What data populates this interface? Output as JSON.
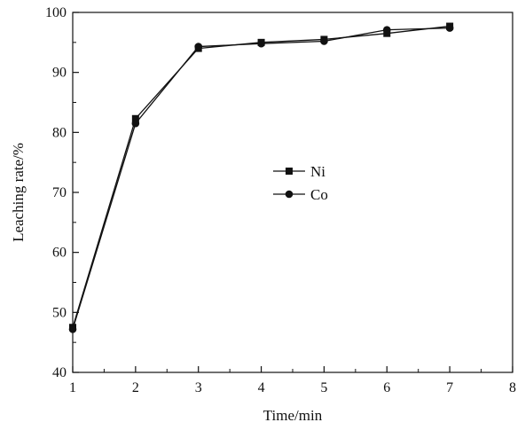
{
  "chart_data": {
    "type": "line",
    "xlabel": "Time/min",
    "ylabel": "Leaching rate/%",
    "xlim": [
      1,
      8
    ],
    "ylim": [
      40,
      100
    ],
    "xticks": [
      1,
      2,
      3,
      4,
      5,
      6,
      7,
      8
    ],
    "yticks": [
      40,
      50,
      60,
      70,
      80,
      90,
      100
    ],
    "xtick_labels": [
      "1",
      "2",
      "3",
      "4",
      "5",
      "6",
      "7",
      "8"
    ],
    "ytick_labels": [
      "40",
      "50",
      "60",
      "70",
      "80",
      "90",
      "100"
    ],
    "grid": false,
    "legend_position": "center",
    "series": [
      {
        "name": "Ni",
        "marker": "square",
        "color": "#111111",
        "x": [
          1,
          2,
          3,
          4,
          5,
          6,
          7
        ],
        "y": [
          47.5,
          82.3,
          94.0,
          95.0,
          95.5,
          96.5,
          97.7
        ]
      },
      {
        "name": "Co",
        "marker": "circle",
        "color": "#111111",
        "x": [
          1,
          2,
          3,
          4,
          5,
          6,
          7
        ],
        "y": [
          47.2,
          81.5,
          94.3,
          94.8,
          95.2,
          97.1,
          97.4
        ]
      }
    ]
  }
}
